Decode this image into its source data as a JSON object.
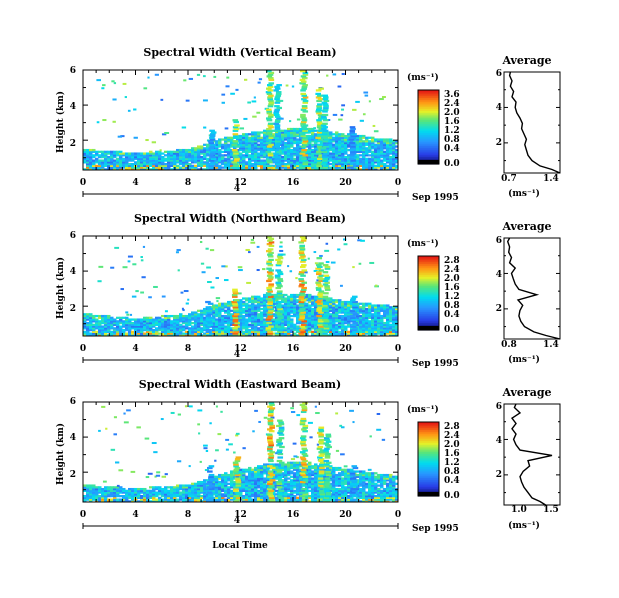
{
  "charts": [
    {
      "title": "Spectral Width (Vertical Beam)",
      "ylabel": "Height (km)",
      "yticks": [
        "2",
        "4",
        "6"
      ],
      "xticks": [
        "0",
        "4",
        "8",
        "12",
        "16",
        "20",
        "0"
      ],
      "date_tick": "4",
      "date_label": "Sep 1995",
      "colorbar_unit": "(ms⁻¹)",
      "colorbar_ticks": [
        "3.6",
        "2.4",
        "2.0",
        "1.6",
        "1.2",
        "0.8",
        "0.4",
        "0.0"
      ],
      "avg_title": "Average",
      "avg_xticks": [
        "0.7",
        "1.4"
      ],
      "avg_xlabel": "(ms⁻¹)",
      "avg_yticks": [
        "2",
        "4",
        "6"
      ]
    },
    {
      "title": "Spectral Width (Northward Beam)",
      "ylabel": "Height (km)",
      "yticks": [
        "2",
        "4",
        "6"
      ],
      "xticks": [
        "0",
        "4",
        "8",
        "12",
        "16",
        "20",
        "0"
      ],
      "date_tick": "4",
      "date_label": "Sep 1995",
      "colorbar_unit": "(ms⁻¹)",
      "colorbar_ticks": [
        "2.8",
        "2.4",
        "2.0",
        "1.6",
        "1.2",
        "0.8",
        "0.4",
        "0.0"
      ],
      "avg_title": "Average",
      "avg_xticks": [
        "0.8",
        "1.4"
      ],
      "avg_xlabel": "(ms⁻¹)",
      "avg_yticks": [
        "2",
        "4",
        "6"
      ]
    },
    {
      "title": "Spectral Width (Eastward Beam)",
      "ylabel": "Height (km)",
      "yticks": [
        "2",
        "4",
        "6"
      ],
      "xticks": [
        "0",
        "4",
        "8",
        "12",
        "16",
        "20",
        "0"
      ],
      "date_tick": "4",
      "date_label": "Sep 1995",
      "colorbar_unit": "(ms⁻¹)",
      "colorbar_ticks": [
        "2.8",
        "2.4",
        "2.0",
        "1.6",
        "1.2",
        "0.8",
        "0.4",
        "0.0"
      ],
      "avg_title": "Average",
      "avg_xticks": [
        "1.0",
        "1.5"
      ],
      "avg_xlabel": "(ms⁻¹)",
      "avg_yticks": [
        "2",
        "4",
        "6"
      ]
    }
  ],
  "xlabel": "Local Time",
  "chart_data": [
    {
      "type": "heatmap",
      "title": "Spectral Width (Vertical Beam)",
      "xlabel": "Local Time",
      "ylabel": "Height (km)",
      "xlim": [
        0,
        24
      ],
      "ylim": [
        0.3,
        6
      ],
      "colorbar": {
        "min": 0.0,
        "max": 3.6,
        "unit": "ms-1"
      },
      "boundary_layer_top_km": [
        [
          0,
          1.5
        ],
        [
          4,
          1.3
        ],
        [
          8,
          1.5
        ],
        [
          11,
          2.2
        ],
        [
          14,
          2.6
        ],
        [
          17,
          2.7
        ],
        [
          20,
          2.4
        ],
        [
          24,
          2.0
        ]
      ],
      "convective_plumes": [
        {
          "x": 11.6,
          "top": 3.2,
          "value": 2.8
        },
        {
          "x": 14.2,
          "top": 6.0,
          "value": 2.8
        },
        {
          "x": 14.8,
          "top": 5.2,
          "value": 2.0
        },
        {
          "x": 16.8,
          "top": 6.0,
          "value": 3.0
        },
        {
          "x": 18.0,
          "top": 5.0,
          "value": 2.8
        },
        {
          "x": 18.4,
          "top": 4.6,
          "value": 2.2
        },
        {
          "x": 9.8,
          "top": 2.6,
          "value": 1.6
        },
        {
          "x": 20.5,
          "top": 2.8,
          "value": 1.4
        }
      ]
    },
    {
      "type": "heatmap",
      "title": "Spectral Width (Northward Beam)",
      "xlabel": "Local Time",
      "ylabel": "Height (km)",
      "xlim": [
        0,
        24
      ],
      "ylim": [
        0.3,
        6
      ],
      "colorbar": {
        "min": 0.0,
        "max": 2.8,
        "unit": "ms-1"
      },
      "boundary_layer_top_km": [
        [
          0,
          1.6
        ],
        [
          4,
          1.3
        ],
        [
          8,
          1.6
        ],
        [
          11,
          2.3
        ],
        [
          14,
          2.7
        ],
        [
          17,
          2.7
        ],
        [
          20,
          2.3
        ],
        [
          24,
          2.0
        ]
      ],
      "convective_plumes": [
        {
          "x": 11.6,
          "top": 3.0,
          "value": 2.6
        },
        {
          "x": 14.2,
          "top": 6.0,
          "value": 2.6
        },
        {
          "x": 14.9,
          "top": 5.0,
          "value": 2.0
        },
        {
          "x": 16.7,
          "top": 6.0,
          "value": 2.6
        },
        {
          "x": 18.0,
          "top": 4.8,
          "value": 2.4
        },
        {
          "x": 18.5,
          "top": 4.4,
          "value": 2.0
        },
        {
          "x": 9.6,
          "top": 2.4,
          "value": 1.4
        },
        {
          "x": 20.6,
          "top": 2.6,
          "value": 1.2
        }
      ]
    },
    {
      "type": "heatmap",
      "title": "Spectral Width (Eastward Beam)",
      "xlabel": "Local Time",
      "ylabel": "Height (km)",
      "xlim": [
        0,
        24
      ],
      "ylim": [
        0.3,
        6
      ],
      "colorbar": {
        "min": 0.0,
        "max": 2.8,
        "unit": "ms-1"
      },
      "boundary_layer_top_km": [
        [
          0,
          1.3
        ],
        [
          4,
          1.1
        ],
        [
          8,
          1.3
        ],
        [
          11,
          2.0
        ],
        [
          14,
          2.5
        ],
        [
          17,
          2.6
        ],
        [
          20,
          2.2
        ],
        [
          24,
          1.8
        ]
      ],
      "convective_plumes": [
        {
          "x": 11.7,
          "top": 3.0,
          "value": 2.4
        },
        {
          "x": 14.3,
          "top": 6.0,
          "value": 2.6
        },
        {
          "x": 15.0,
          "top": 5.0,
          "value": 1.8
        },
        {
          "x": 16.8,
          "top": 6.0,
          "value": 2.4
        },
        {
          "x": 18.1,
          "top": 4.6,
          "value": 2.2
        },
        {
          "x": 18.6,
          "top": 4.2,
          "value": 1.8
        },
        {
          "x": 9.7,
          "top": 2.4,
          "value": 1.2
        },
        {
          "x": 20.6,
          "top": 2.4,
          "value": 1.2
        }
      ]
    },
    {
      "type": "line",
      "title": "Average",
      "xlabel": "(ms-1)",
      "ylabel": "Height (km)",
      "xlim": [
        0.7,
        1.4
      ],
      "ylim": [
        0.3,
        6
      ],
      "series": [
        {
          "points": [
            [
              1.4,
              0.3
            ],
            [
              1.3,
              0.5
            ],
            [
              1.15,
              0.7
            ],
            [
              1.05,
              1.0
            ],
            [
              1.0,
              1.3
            ],
            [
              0.98,
              1.6
            ],
            [
              0.96,
              1.9
            ],
            [
              0.98,
              2.2
            ],
            [
              0.95,
              2.5
            ],
            [
              0.92,
              2.8
            ],
            [
              0.93,
              3.1
            ],
            [
              0.9,
              3.4
            ],
            [
              0.86,
              3.7
            ],
            [
              0.84,
              4.0
            ],
            [
              0.85,
              4.3
            ],
            [
              0.8,
              4.6
            ],
            [
              0.82,
              4.9
            ],
            [
              0.78,
              5.2
            ],
            [
              0.8,
              5.5
            ],
            [
              0.77,
              5.8
            ],
            [
              0.78,
              6.0
            ]
          ]
        }
      ]
    },
    {
      "type": "line",
      "title": "Average",
      "xlabel": "(ms-1)",
      "ylabel": "Height (km)",
      "xlim": [
        0.8,
        1.4
      ],
      "ylim": [
        0.3,
        6
      ],
      "series": [
        {
          "points": [
            [
              1.4,
              0.3
            ],
            [
              1.25,
              0.5
            ],
            [
              1.12,
              0.7
            ],
            [
              1.02,
              1.0
            ],
            [
              0.98,
              1.3
            ],
            [
              0.96,
              1.6
            ],
            [
              0.97,
              1.9
            ],
            [
              1.0,
              2.2
            ],
            [
              0.95,
              2.5
            ],
            [
              1.15,
              2.8
            ],
            [
              0.96,
              3.1
            ],
            [
              0.92,
              3.4
            ],
            [
              0.9,
              3.7
            ],
            [
              0.88,
              4.0
            ],
            [
              0.92,
              4.3
            ],
            [
              0.86,
              4.6
            ],
            [
              0.88,
              4.9
            ],
            [
              0.85,
              5.2
            ],
            [
              0.86,
              5.5
            ],
            [
              0.84,
              5.8
            ],
            [
              0.86,
              6.0
            ]
          ]
        }
      ]
    },
    {
      "type": "line",
      "title": "Average",
      "xlabel": "(ms-1)",
      "ylabel": "Height (km)",
      "xlim": [
        0.8,
        1.5
      ],
      "ylim": [
        0.3,
        6
      ],
      "series": [
        {
          "points": [
            [
              1.32,
              0.3
            ],
            [
              1.25,
              0.5
            ],
            [
              1.15,
              0.7
            ],
            [
              1.1,
              1.0
            ],
            [
              1.05,
              1.3
            ],
            [
              1.02,
              1.6
            ],
            [
              1.0,
              1.9
            ],
            [
              1.04,
              2.2
            ],
            [
              1.12,
              2.5
            ],
            [
              1.1,
              2.8
            ],
            [
              1.4,
              3.1
            ],
            [
              1.0,
              3.4
            ],
            [
              0.95,
              3.7
            ],
            [
              0.92,
              4.0
            ],
            [
              0.95,
              4.3
            ],
            [
              0.9,
              4.6
            ],
            [
              0.95,
              4.9
            ],
            [
              0.9,
              5.2
            ],
            [
              1.0,
              5.5
            ],
            [
              0.93,
              5.8
            ],
            [
              0.95,
              6.0
            ]
          ]
        }
      ]
    }
  ]
}
